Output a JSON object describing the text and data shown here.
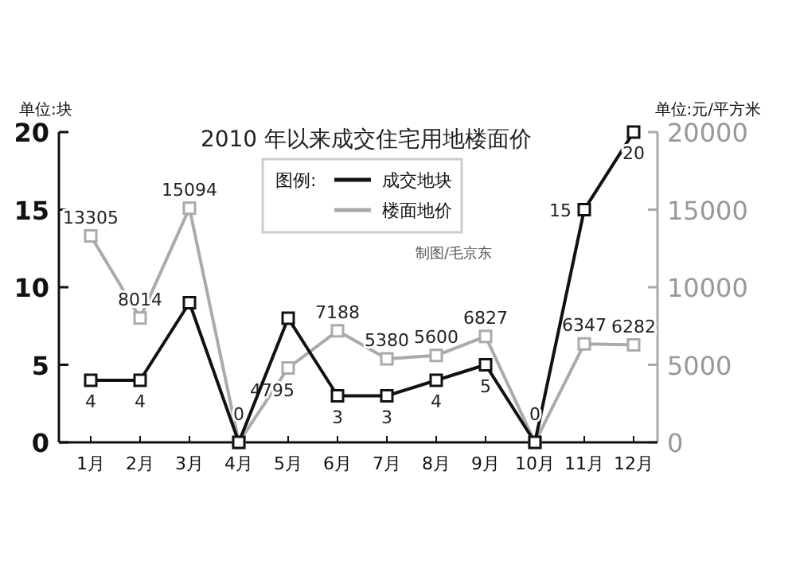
{
  "chart_data": {
    "type": "line",
    "title": "2010 年以来成交住宅用地楼面价",
    "ylabel": "单位:块",
    "y2label": "单位:元/平方米",
    "legend_title": "图例:",
    "legend": "top",
    "marker": "square",
    "categories": [
      "1月",
      "2月",
      "3月",
      "4月",
      "5月",
      "6月",
      "7月",
      "8月",
      "9月",
      "10月",
      "11月",
      "12月"
    ],
    "series": [
      {
        "name": "成交地块",
        "color": "#111111",
        "values": [
          4,
          4,
          9,
          0,
          8,
          3,
          3,
          4,
          5,
          0,
          15,
          20
        ],
        "value_labels": [
          "4",
          "4",
          null,
          "0",
          null,
          "3",
          "3",
          "4",
          "5",
          "0",
          "15",
          "20"
        ]
      },
      {
        "name": "楼面地价",
        "color": "#aaaaaa",
        "axis": "y2",
        "values": [
          13305,
          8014,
          15094,
          0,
          4795,
          7188,
          5380,
          5600,
          6827,
          0,
          6347,
          6282
        ],
        "value_labels": [
          "13305",
          "8014",
          "15094",
          null,
          "4795",
          "7188",
          "5380",
          "5600",
          "6827",
          null,
          "6347",
          "6282"
        ]
      }
    ],
    "ylim": [
      0,
      20
    ],
    "yticks": [
      0,
      5,
      10,
      15,
      20
    ],
    "y2lim": [
      0,
      20000
    ],
    "y2ticks": [
      0,
      5000,
      10000,
      15000,
      20000
    ],
    "annotations": [
      "制图/毛京东"
    ]
  }
}
